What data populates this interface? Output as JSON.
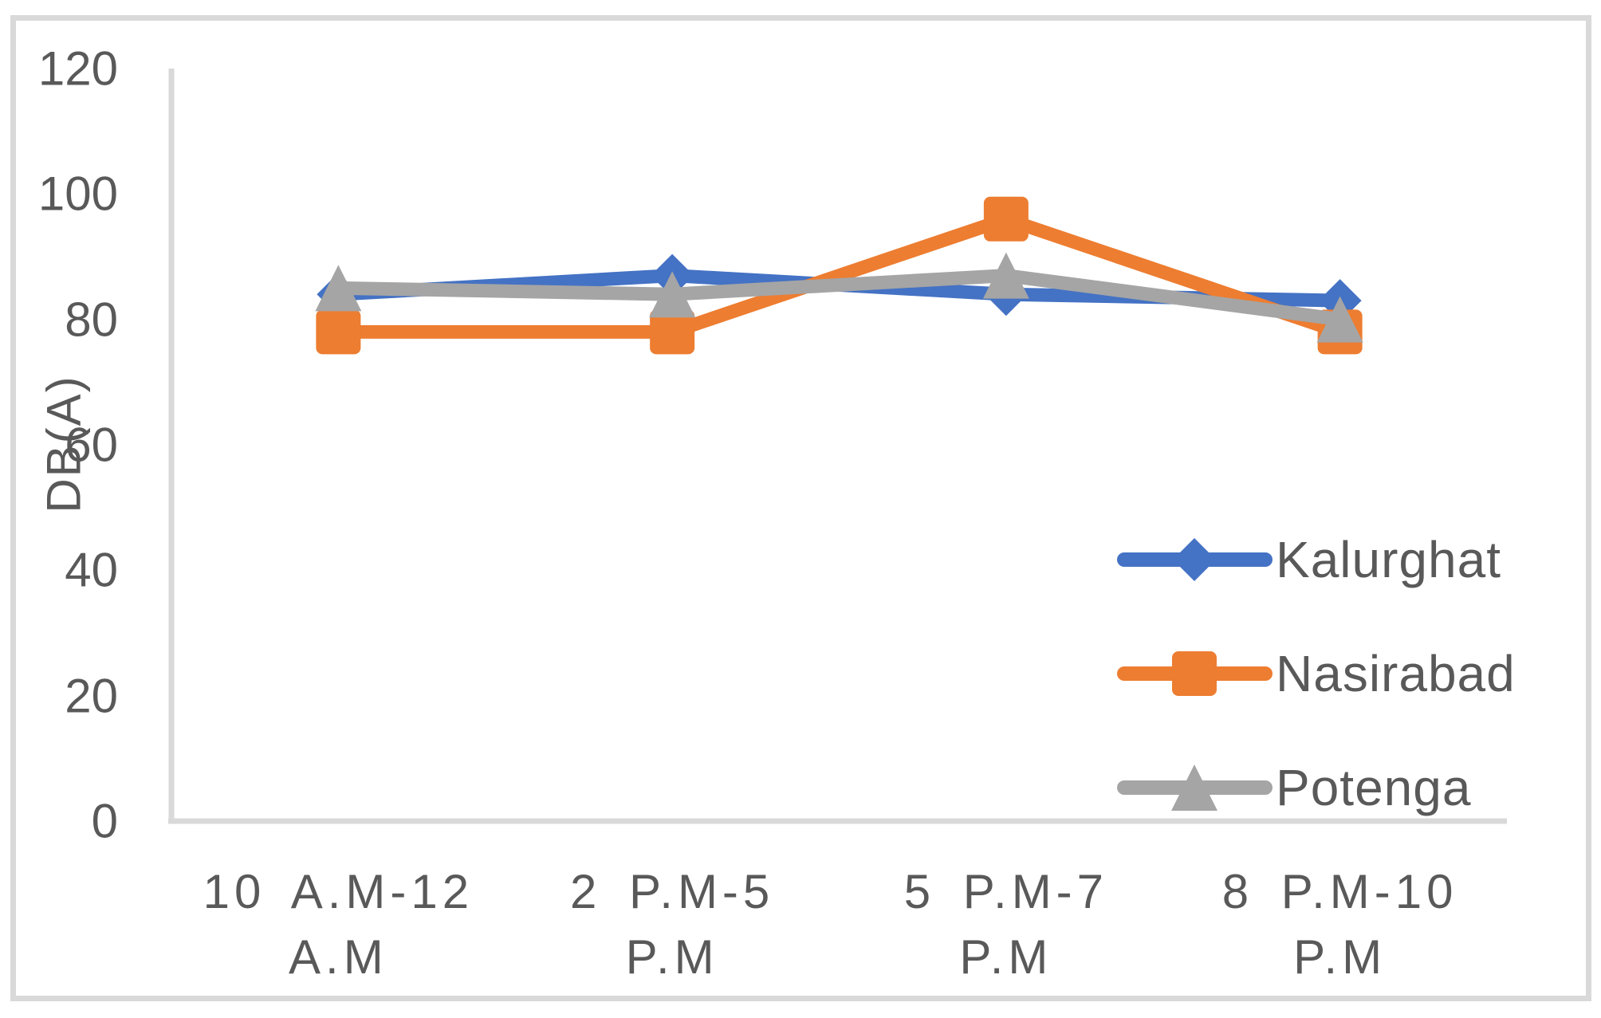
{
  "chart_data": {
    "type": "line",
    "title": "",
    "xlabel": "",
    "ylabel": "DB(A)",
    "ylim": [
      0,
      120
    ],
    "y_ticks": [
      0,
      20,
      40,
      60,
      80,
      100,
      120
    ],
    "grid": false,
    "legend_position": "right-middle",
    "categories": [
      "10 A.M-12 A.M",
      "2 P.M-5 P.M",
      "5 P.M-7 P.M",
      "8 P.M-10 P.M"
    ],
    "categories_wrapped": [
      [
        "10 A.M-12",
        "A.M"
      ],
      [
        "2 P.M-5",
        "P.M"
      ],
      [
        "5 P.M-7",
        "P.M"
      ],
      [
        "8 P.M-10",
        "P.M"
      ]
    ],
    "series": [
      {
        "name": "Kalurghat",
        "color": "#4472C4",
        "marker": "diamond",
        "values": [
          84,
          87,
          84,
          83
        ]
      },
      {
        "name": "Nasirabad",
        "color": "#ED7D31",
        "marker": "square",
        "values": [
          78,
          78,
          96,
          78
        ]
      },
      {
        "name": "Potenga",
        "color": "#A5A5A5",
        "marker": "triangle",
        "values": [
          85,
          84,
          87,
          80
        ]
      }
    ],
    "colors": {
      "axis_line": "#D9D9D9",
      "text": "#595959",
      "background": "#FFFFFF"
    }
  }
}
